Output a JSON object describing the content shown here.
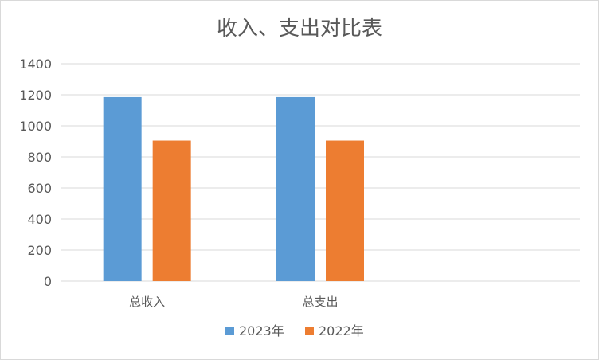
{
  "chart_data": {
    "type": "bar",
    "title": "收入、支出对比表",
    "categories": [
      "总收入",
      "总支出"
    ],
    "series": [
      {
        "name": "2023年",
        "values": [
          1185,
          1185
        ],
        "color": "#5b9bd5"
      },
      {
        "name": "2022年",
        "values": [
          905,
          905
        ],
        "color": "#ed7d31"
      }
    ],
    "ylim": [
      0,
      1400
    ],
    "yticks": [
      0,
      200,
      400,
      600,
      800,
      1000,
      1200,
      1400
    ],
    "xlabel": "",
    "ylabel": "",
    "grid": true,
    "legend_position": "bottom"
  }
}
